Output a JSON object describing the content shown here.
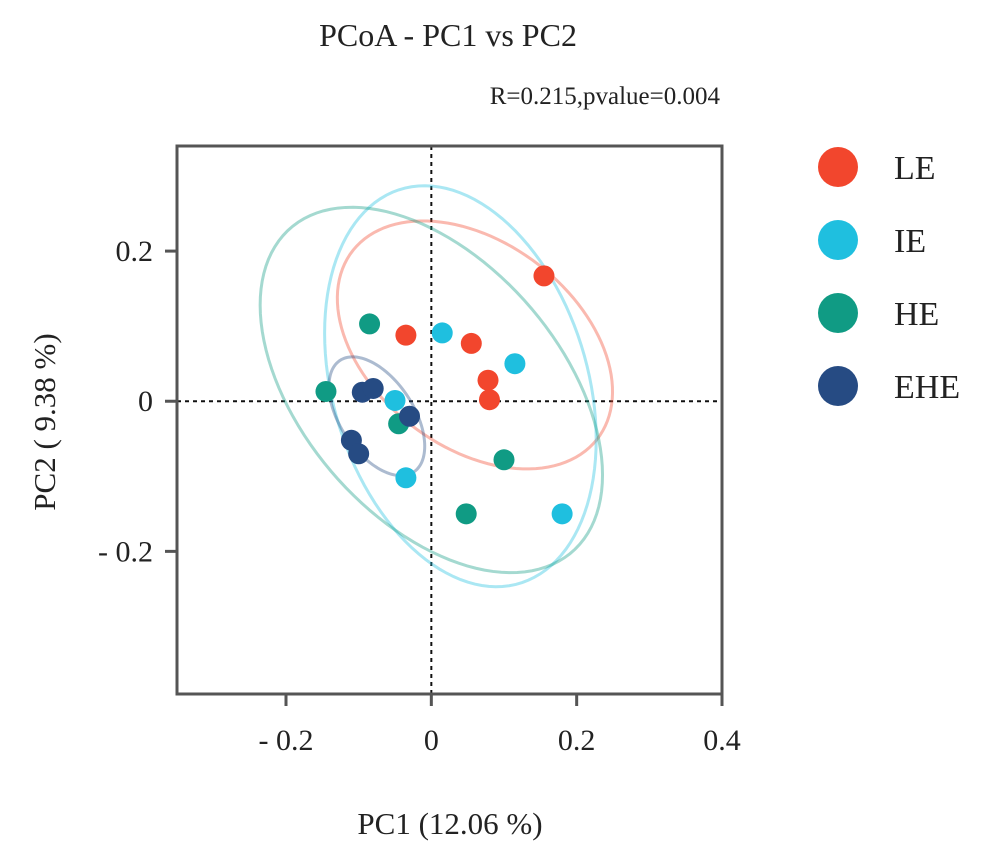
{
  "chart_data": {
    "type": "scatter",
    "title": "PCoA - PC1 vs PC2",
    "subtitle": "R=0.215,pvalue=0.004",
    "xlabel": "PC1 (12.06 %)",
    "ylabel": "PC2 ( 9.38 %)",
    "xlim": [
      -0.35,
      0.4
    ],
    "ylim": [
      -0.39,
      0.34
    ],
    "xticks": [
      -0.2,
      0,
      0.2,
      0.4
    ],
    "xtick_labels": [
      "- 0.2",
      "0",
      "0.2",
      "0.4"
    ],
    "yticks": [
      0.2,
      0,
      -0.2
    ],
    "ytick_labels": [
      "0.2",
      "0",
      "- 0.2"
    ],
    "reference_lines": {
      "x": 0,
      "y": 0,
      "style": "dotted"
    },
    "legend_position": "right",
    "series": [
      {
        "name": "LE",
        "color": "#f2462d",
        "x": [
          -0.035,
          0.055,
          0.078,
          0.08,
          0.155
        ],
        "y": [
          0.088,
          0.077,
          0.028,
          0.002,
          0.167
        ],
        "ellipse": {
          "cx": 0.06,
          "cy": 0.075,
          "rx": 0.21,
          "ry": 0.138,
          "angle": -35
        }
      },
      {
        "name": "IE",
        "color": "#1fbfdf",
        "x": [
          0.015,
          0.115,
          -0.05,
          -0.035,
          0.18
        ],
        "y": [
          0.091,
          0.05,
          0.001,
          -0.102,
          -0.15
        ],
        "ellipse": {
          "cx": 0.04,
          "cy": 0.02,
          "rx": 0.275,
          "ry": 0.175,
          "angle": -72
        }
      },
      {
        "name": "HE",
        "color": "#109b84",
        "x": [
          -0.085,
          -0.145,
          -0.045,
          0.1,
          0.048
        ],
        "y": [
          0.103,
          0.013,
          -0.03,
          -0.078,
          -0.15
        ],
        "ellipse": {
          "cx": 0.0,
          "cy": 0.015,
          "rx": 0.29,
          "ry": 0.175,
          "angle": -47
        }
      },
      {
        "name": "EHE",
        "color": "#264b83",
        "x": [
          -0.095,
          -0.08,
          -0.03,
          -0.11,
          -0.1
        ],
        "y": [
          0.012,
          0.017,
          -0.02,
          -0.052,
          -0.07
        ],
        "ellipse": {
          "cx": -0.075,
          "cy": -0.02,
          "rx": 0.09,
          "ry": 0.05,
          "angle": -55
        }
      }
    ]
  }
}
